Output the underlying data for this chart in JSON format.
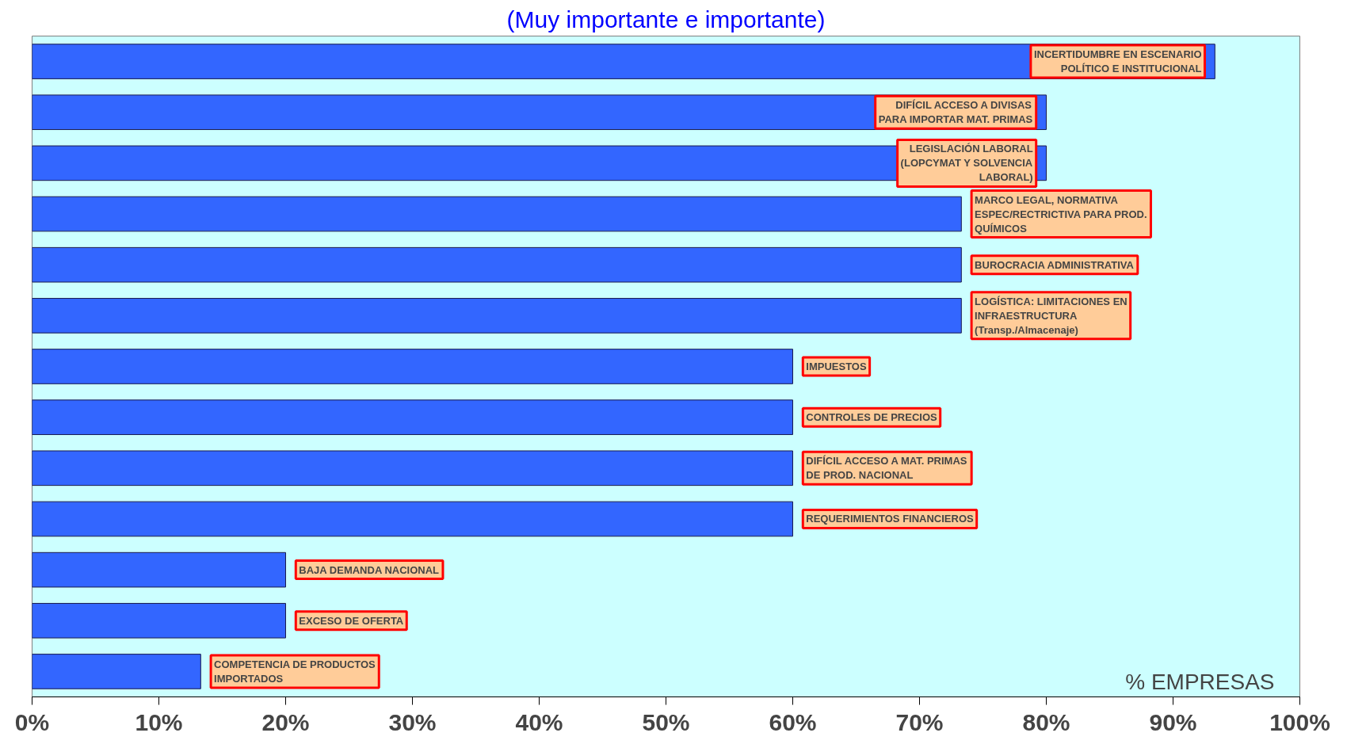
{
  "chart_data": {
    "type": "bar",
    "orientation": "horizontal",
    "title": "(Muy importante e importante)",
    "categories": [
      "INCERTIDUMBRE EN ESCENARIO POLÍTICO E INSTITUCIONAL",
      "DIFÍCIL ACCESO A DIVISAS PARA IMPORTAR MAT. PRIMAS",
      "LEGISLACIÓN LABORAL (LOPCYMAT Y SOLVENCIA LABORAL)",
      "MARCO LEGAL, NORMATIVA ESPEC/RECTRICTIVA PARA PROD. QUÍMICOS",
      "BUROCRACIA ADMINISTRATIVA",
      "LOGÍSTICA: LIMITACIONES EN INFRAESTRUCTURA (Transp./Almacenaje)",
      "IMPUESTOS",
      "CONTROLES DE PRECIOS",
      "DIFÍCIL ACCESO A MAT. PRIMAS DE PROD. NACIONAL",
      "REQUERIMIENTOS FINANCIEROS",
      "BAJA DEMANDA NACIONAL",
      "EXCESO DE OFERTA",
      "COMPETENCIA DE PRODUCTOS IMPORTADOS"
    ],
    "values": [
      93.3,
      80,
      80,
      73.3,
      73.3,
      73.3,
      60,
      60,
      60,
      60,
      20,
      20,
      13.3
    ],
    "color": "#3366ff",
    "xlim": [
      0,
      100
    ],
    "xticks": [
      {
        "value": 0,
        "label": "0%"
      },
      {
        "value": 10,
        "label": "10%"
      },
      {
        "value": 20,
        "label": "20%"
      },
      {
        "value": 30,
        "label": "30%"
      },
      {
        "value": 40,
        "label": "40%"
      },
      {
        "value": 50,
        "label": "50%"
      },
      {
        "value": 60,
        "label": "60%"
      },
      {
        "value": 70,
        "label": "70%"
      },
      {
        "value": 80,
        "label": "80%"
      },
      {
        "value": 90,
        "label": "90%"
      },
      {
        "value": 100,
        "label": "100%"
      }
    ],
    "annotations": [
      "% EMPRESAS"
    ],
    "grid": false
  }
}
